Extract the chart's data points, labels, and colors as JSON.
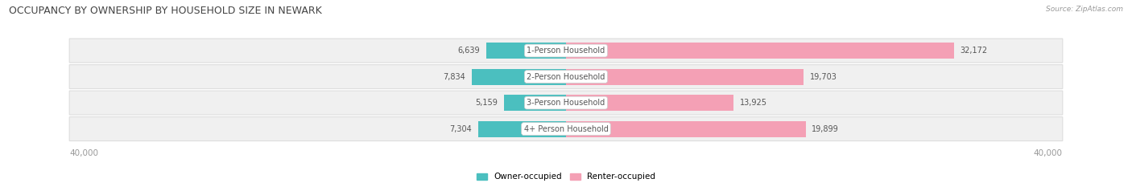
{
  "title": "OCCUPANCY BY OWNERSHIP BY HOUSEHOLD SIZE IN NEWARK",
  "source": "Source: ZipAtlas.com",
  "categories": [
    "1-Person Household",
    "2-Person Household",
    "3-Person Household",
    "4+ Person Household"
  ],
  "owner_values": [
    6639,
    7834,
    5159,
    7304
  ],
  "renter_values": [
    32172,
    19703,
    13925,
    19899
  ],
  "max_val": 40000,
  "owner_color": "#4BBFBF",
  "renter_color": "#F4A0B5",
  "row_bg_color": "#F0F0F0",
  "row_edge_color": "#DDDDDD",
  "title_color": "#444444",
  "axis_label_color": "#999999",
  "value_label_color": "#555555",
  "center_label_color": "#555555",
  "legend_owner_label": "Owner-occupied",
  "legend_renter_label": "Renter-occupied",
  "figsize": [
    14.06,
    2.33
  ],
  "dpi": 100
}
